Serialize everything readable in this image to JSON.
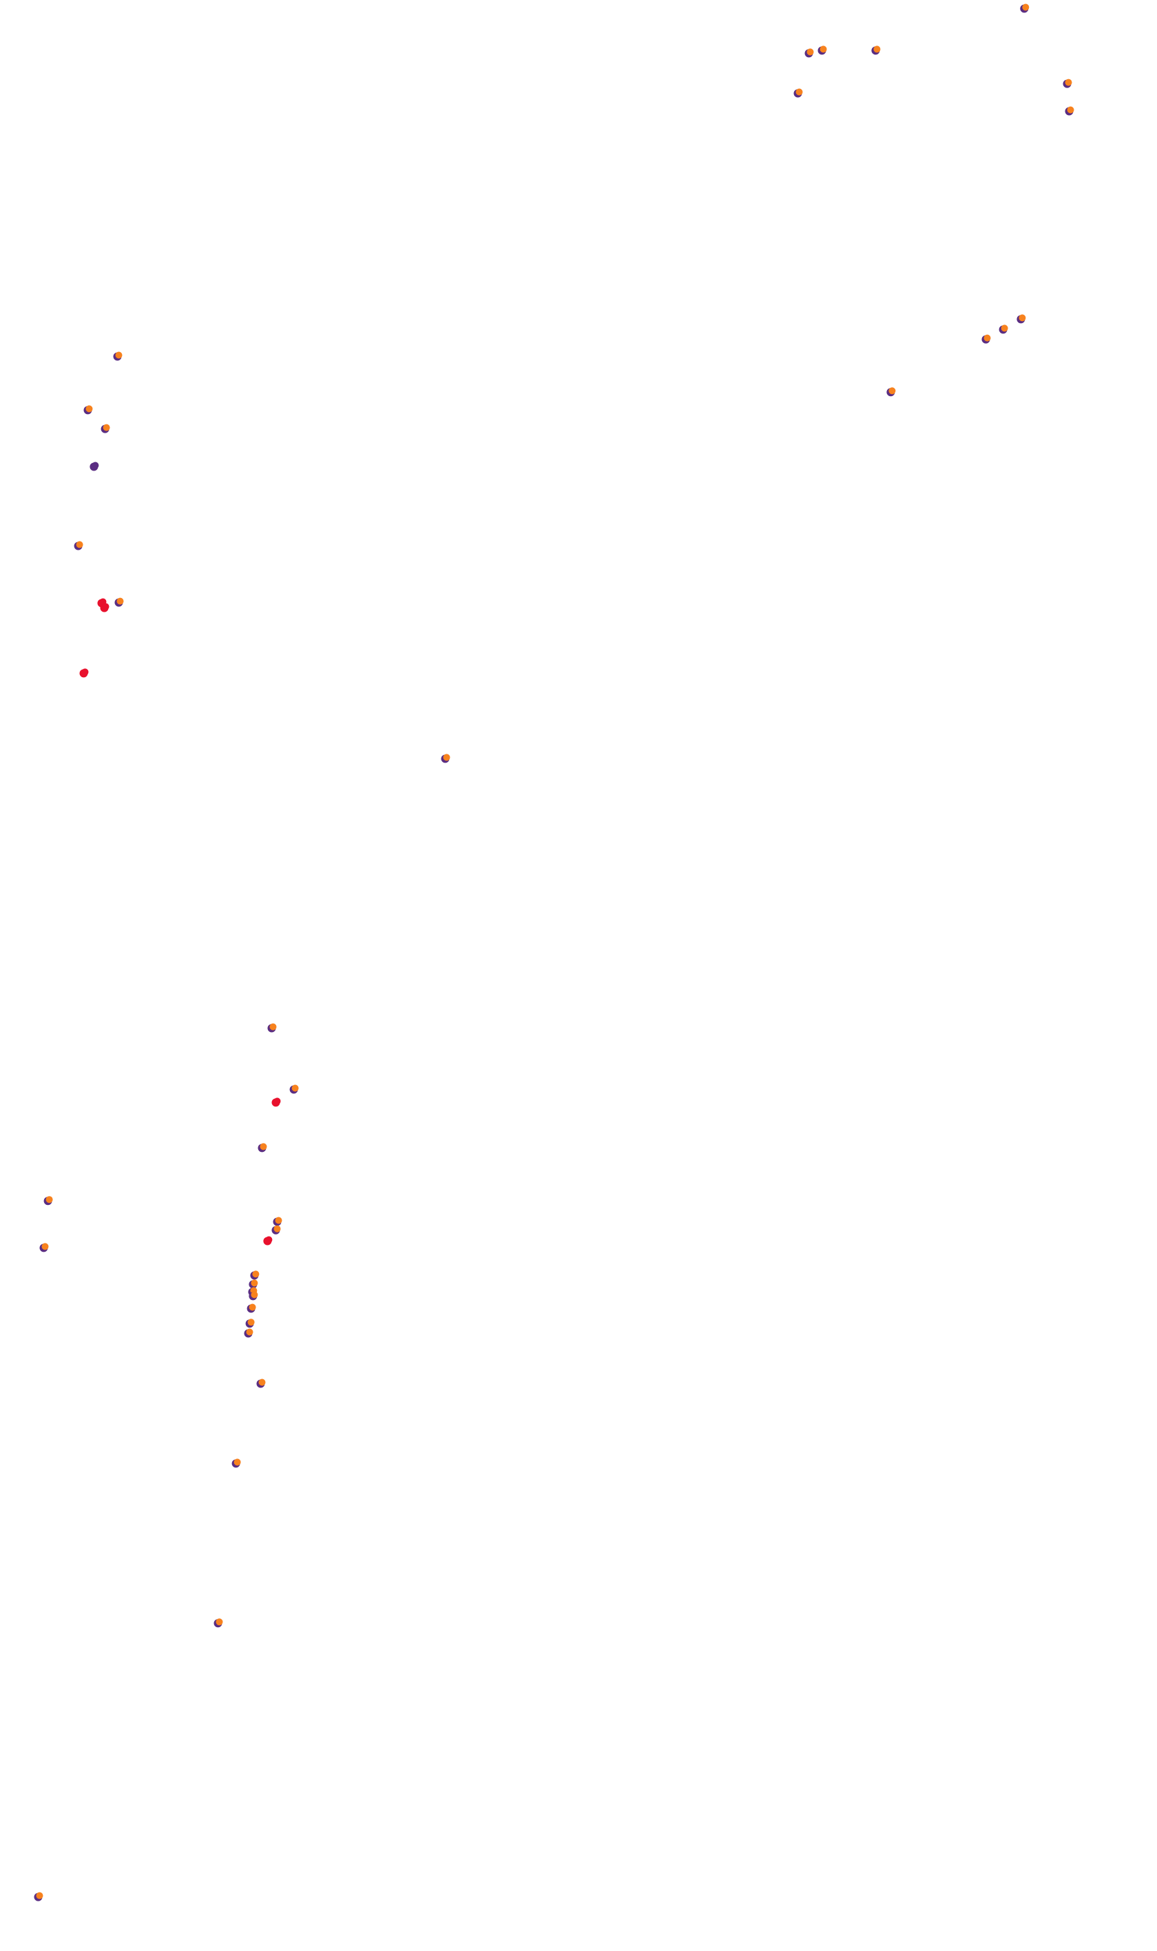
{
  "colors": {
    "background": "#ffffff",
    "marker_primary": "#f7821e",
    "marker_secondary": "#5a2d82",
    "marker_alert": "#e8112d"
  },
  "markers": [
    {
      "x": 0.8862,
      "y": 0.0039,
      "kind": "normal"
    },
    {
      "x": 0.7,
      "y": 0.0268,
      "kind": "normal"
    },
    {
      "x": 0.7113,
      "y": 0.0254,
      "kind": "normal"
    },
    {
      "x": 0.7577,
      "y": 0.0254,
      "kind": "normal"
    },
    {
      "x": 0.6905,
      "y": 0.0473,
      "kind": "normal"
    },
    {
      "x": 0.9232,
      "y": 0.0424,
      "kind": "normal"
    },
    {
      "x": 0.925,
      "y": 0.0565,
      "kind": "normal"
    },
    {
      "x": 0.8833,
      "y": 0.1631,
      "kind": "normal"
    },
    {
      "x": 0.8679,
      "y": 0.1684,
      "kind": "normal"
    },
    {
      "x": 0.853,
      "y": 0.1734,
      "kind": "normal"
    },
    {
      "x": 0.7708,
      "y": 0.2005,
      "kind": "normal"
    },
    {
      "x": 0.1024,
      "y": 0.1822,
      "kind": "normal"
    },
    {
      "x": 0.0768,
      "y": 0.2097,
      "kind": "normal"
    },
    {
      "x": 0.0917,
      "y": 0.2193,
      "kind": "normal"
    },
    {
      "x": 0.0821,
      "y": 0.2387,
      "kind": "secondary"
    },
    {
      "x": 0.0685,
      "y": 0.2793,
      "kind": "normal"
    },
    {
      "x": 0.0887,
      "y": 0.3086,
      "kind": "alert"
    },
    {
      "x": 0.0911,
      "y": 0.3111,
      "kind": "alert"
    },
    {
      "x": 0.1036,
      "y": 0.3083,
      "kind": "normal"
    },
    {
      "x": 0.0732,
      "y": 0.3446,
      "kind": "alert"
    },
    {
      "x": 0.3857,
      "y": 0.3884,
      "kind": "normal"
    },
    {
      "x": 0.2357,
      "y": 0.5265,
      "kind": "normal"
    },
    {
      "x": 0.2548,
      "y": 0.5579,
      "kind": "normal"
    },
    {
      "x": 0.2393,
      "y": 0.5646,
      "kind": "alert"
    },
    {
      "x": 0.2274,
      "y": 0.5879,
      "kind": "normal"
    },
    {
      "x": 0.0423,
      "y": 0.615,
      "kind": "normal"
    },
    {
      "x": 0.0387,
      "y": 0.6391,
      "kind": "normal"
    },
    {
      "x": 0.2405,
      "y": 0.6257,
      "kind": "normal"
    },
    {
      "x": 0.2393,
      "y": 0.63,
      "kind": "normal"
    },
    {
      "x": 0.2321,
      "y": 0.6356,
      "kind": "alert"
    },
    {
      "x": 0.2208,
      "y": 0.6532,
      "kind": "normal"
    },
    {
      "x": 0.2196,
      "y": 0.6578,
      "kind": "normal"
    },
    {
      "x": 0.219,
      "y": 0.6617,
      "kind": "normal"
    },
    {
      "x": 0.2196,
      "y": 0.6638,
      "kind": "normal"
    },
    {
      "x": 0.2179,
      "y": 0.6702,
      "kind": "normal"
    },
    {
      "x": 0.2167,
      "y": 0.6779,
      "kind": "normal"
    },
    {
      "x": 0.2155,
      "y": 0.6829,
      "kind": "normal"
    },
    {
      "x": 0.2262,
      "y": 0.7087,
      "kind": "normal"
    },
    {
      "x": 0.2048,
      "y": 0.7496,
      "kind": "normal"
    },
    {
      "x": 0.1893,
      "y": 0.8315,
      "kind": "normal"
    },
    {
      "x": 0.0339,
      "y": 0.9718,
      "kind": "normal"
    }
  ]
}
